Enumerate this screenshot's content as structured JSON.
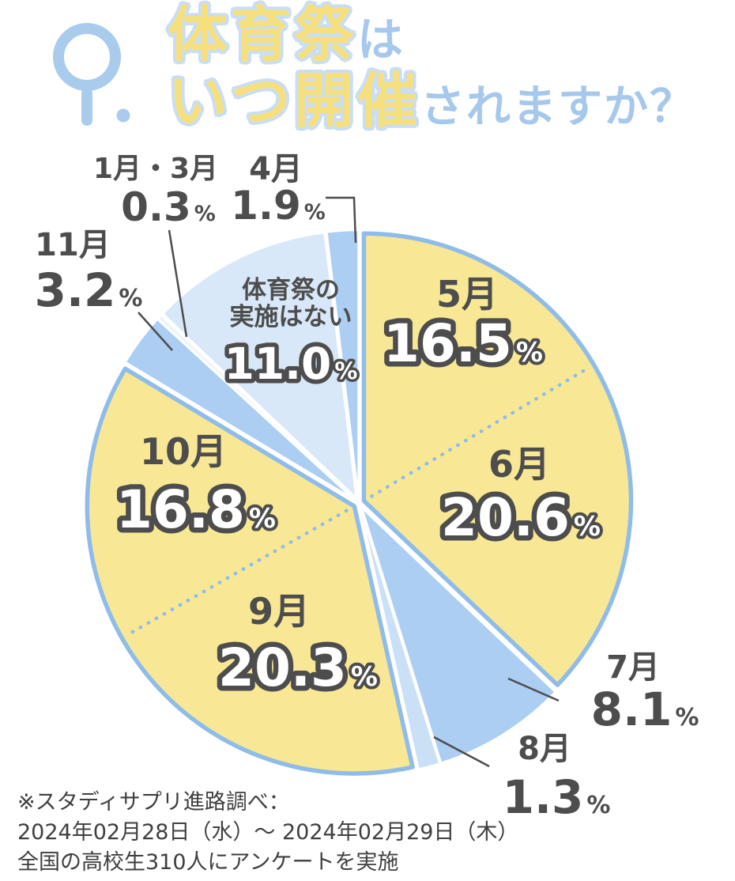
{
  "header": {
    "title1_yellow": "体育祭",
    "title1_blue": "は",
    "title2_yellow": "いつ開催",
    "title2_blue": "されますか？"
  },
  "icons": {
    "question_icon": "Q."
  },
  "chart_data": {
    "type": "pie",
    "title": "体育祭はいつ開催されますか？",
    "unit": "%",
    "start_angle_deg": 0,
    "direction": "clockwise",
    "group_stroke": "#8FBCE9",
    "colors": {
      "yellow_slice": "#F8E895",
      "blue_slice": "#ABCEF2",
      "pale_blue_slice": "#C9E0F7",
      "lightest_blue_slice": "#D8E8F8",
      "near_white_slice": "#EDF4FC",
      "text_dark": "#4D4D4D",
      "outline_blue": "#8FBCE9"
    },
    "slices": [
      {
        "label": "5月",
        "value": "16.5",
        "color": "#F8E895",
        "group": "may-june"
      },
      {
        "label": "6月",
        "value": "20.6",
        "color": "#F8E895",
        "group": "may-june"
      },
      {
        "label": "7月",
        "value": "8.1",
        "color": "#ABCEF2",
        "group": null
      },
      {
        "label": "8月",
        "value": "1.3",
        "color": "#C9E0F7",
        "group": null
      },
      {
        "label": "9月",
        "value": "20.3",
        "color": "#F8E895",
        "group": "sep-oct"
      },
      {
        "label": "10月",
        "value": "16.8",
        "color": "#F8E895",
        "group": "sep-oct"
      },
      {
        "label": "11月",
        "value": "3.2",
        "color": "#ABCEF2",
        "group": null
      },
      {
        "label": "1月・3月",
        "value": "0.3",
        "color": "#EDF4FC",
        "group": null
      },
      {
        "label": "体育祭の実施はない",
        "label_lines": [
          "体育祭の",
          "実施はない"
        ],
        "value": "11.0",
        "color": "#D8E8F8",
        "group": null
      },
      {
        "label": "4月",
        "value": "1.9",
        "color": "#ABCEF2",
        "group": null
      }
    ]
  },
  "footnote": {
    "line1": "※スタディサプリ進路調べ：",
    "line2": "2024年02月28日（水）～ 2024年02月29日（木）",
    "line3": "全国の高校生310人にアンケートを実施"
  }
}
